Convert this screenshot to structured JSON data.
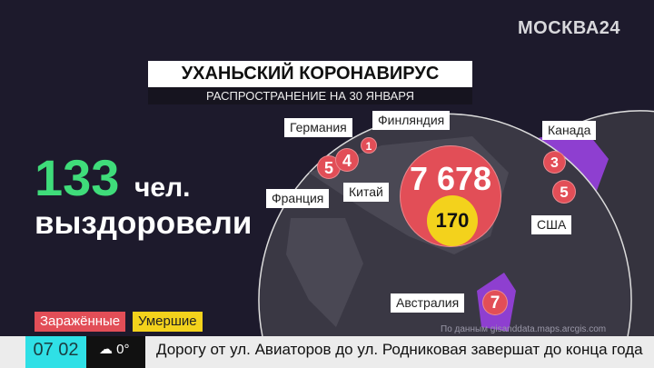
{
  "channel_logo": "МОСКВА24",
  "title": "УХАНЬСКИЙ КОРОНАВИРУС",
  "subtitle": "РАСПРОСТРАНЕНИЕ НА 30 ЯНВАРЯ",
  "recovered": {
    "count": "133",
    "unit": "чел.",
    "label": "выздоровели"
  },
  "countries": [
    {
      "name": "Германия",
      "infected": "4"
    },
    {
      "name": "Финляндия",
      "infected": "1"
    },
    {
      "name": "Франция",
      "infected": "5"
    },
    {
      "name": "Китай",
      "infected": "7 678",
      "deaths": "170"
    },
    {
      "name": "Канада",
      "infected": "3"
    },
    {
      "name": "США",
      "infected": "5"
    },
    {
      "name": "Австралия",
      "infected": "7"
    }
  ],
  "legend": {
    "infected": "Заражённые",
    "deaths": "Умершие"
  },
  "colors": {
    "infected": "#e24e57",
    "deaths": "#f3d21c",
    "affected_region": "#8e3fd0",
    "recovered": "#3fdc7a"
  },
  "source": "По данным gisanddata.maps.arcgis.com",
  "ticker": {
    "time": "07 02",
    "weather_icon": "cloud-snow-icon",
    "temperature": "0°",
    "headline": "Дорогу от ул. Авиаторов до ул. Родниковая завершат до конца года"
  }
}
